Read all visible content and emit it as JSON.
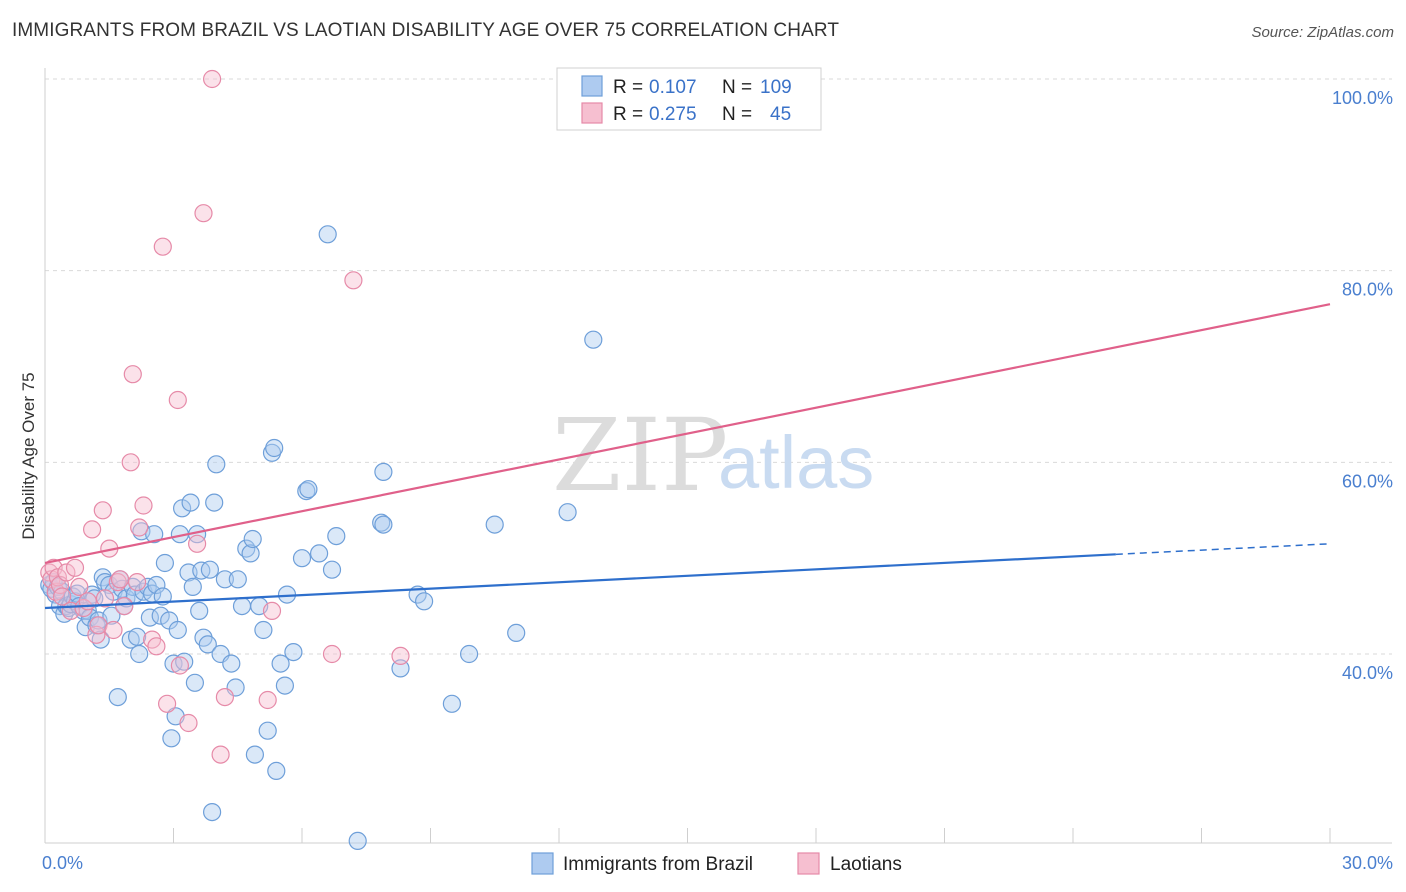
{
  "header": {
    "title": "IMMIGRANTS FROM BRAZIL VS LAOTIAN DISABILITY AGE OVER 75 CORRELATION CHART",
    "source": "Source: ZipAtlas.com"
  },
  "watermark": {
    "part1": "ZIP",
    "part2": "atlas"
  },
  "colors": {
    "blue_fill": "#aecbf0",
    "blue_stroke": "#6e9fd9",
    "blue_line": "#2e6fcc",
    "pink_fill": "#f6bfd0",
    "pink_stroke": "#e68aa8",
    "pink_line": "#e0608a",
    "tick_text": "#4a7fcf",
    "grid": "#d9d9d9"
  },
  "stats_legend": {
    "rows": [
      {
        "r_label": "R =",
        "r_value": "0.107",
        "n_label": "N =",
        "n_value": "109"
      },
      {
        "r_label": "R =",
        "r_value": "0.275",
        "n_label": "N =",
        "n_value": "45"
      }
    ]
  },
  "chart_data": {
    "type": "scatter",
    "title": "IMMIGRANTS FROM BRAZIL VS LAOTIAN DISABILITY AGE OVER 75 CORRELATION CHART",
    "xlabel": "",
    "ylabel": "Disability Age Over 75",
    "xlim": [
      0,
      30
    ],
    "ylim": [
      20,
      102
    ],
    "x_tick_labels": [
      "0.0%",
      "30.0%"
    ],
    "y_ticks": [
      40,
      60,
      80,
      100
    ],
    "y_tick_labels": [
      "40.0%",
      "60.0%",
      "80.0%",
      "100.0%"
    ],
    "grid": "horizontal dashed",
    "legend_position": "top-center",
    "series": [
      {
        "name": "Immigrants from Brazil",
        "color": "#6e9fd9",
        "trend": {
          "x": [
            0,
            25
          ],
          "y": [
            44.8,
            50.4
          ],
          "dashed_extension_to_x": 30,
          "dashed_y_end": 51.5
        },
        "points": [
          [
            0.1,
            47.2
          ],
          [
            0.15,
            46.8
          ],
          [
            0.2,
            47.5
          ],
          [
            0.25,
            46.2
          ],
          [
            0.3,
            47.0
          ],
          [
            0.35,
            45.0
          ],
          [
            0.4,
            46.5
          ],
          [
            0.45,
            44.2
          ],
          [
            0.5,
            45.0
          ],
          [
            0.55,
            44.8
          ],
          [
            0.6,
            45.2
          ],
          [
            0.65,
            46.0
          ],
          [
            0.7,
            45.5
          ],
          [
            0.75,
            46.3
          ],
          [
            0.8,
            45.0
          ],
          [
            0.9,
            44.5
          ],
          [
            0.95,
            42.8
          ],
          [
            1.0,
            44.5
          ],
          [
            1.05,
            43.8
          ],
          [
            1.1,
            46.2
          ],
          [
            1.15,
            45.8
          ],
          [
            1.2,
            43.0
          ],
          [
            1.25,
            43.5
          ],
          [
            1.3,
            41.5
          ],
          [
            1.35,
            48.0
          ],
          [
            1.4,
            47.5
          ],
          [
            1.5,
            47.2
          ],
          [
            1.55,
            44.0
          ],
          [
            1.6,
            46.5
          ],
          [
            1.7,
            35.5
          ],
          [
            1.75,
            47.8
          ],
          [
            1.8,
            46.8
          ],
          [
            1.85,
            45.0
          ],
          [
            1.9,
            45.8
          ],
          [
            2.0,
            41.5
          ],
          [
            2.05,
            47.0
          ],
          [
            2.1,
            46.2
          ],
          [
            2.15,
            41.8
          ],
          [
            2.2,
            40.0
          ],
          [
            2.25,
            52.8
          ],
          [
            2.3,
            46.5
          ],
          [
            2.4,
            47.0
          ],
          [
            2.45,
            43.8
          ],
          [
            2.5,
            46.3
          ],
          [
            2.55,
            52.5
          ],
          [
            2.6,
            47.2
          ],
          [
            2.7,
            44.0
          ],
          [
            2.75,
            46.0
          ],
          [
            2.8,
            49.5
          ],
          [
            2.9,
            43.5
          ],
          [
            2.95,
            31.2
          ],
          [
            3.0,
            39.0
          ],
          [
            3.05,
            33.5
          ],
          [
            3.1,
            42.5
          ],
          [
            3.15,
            52.5
          ],
          [
            3.2,
            55.2
          ],
          [
            3.25,
            39.2
          ],
          [
            3.35,
            48.5
          ],
          [
            3.4,
            55.8
          ],
          [
            3.45,
            47.0
          ],
          [
            3.5,
            37.0
          ],
          [
            3.55,
            52.5
          ],
          [
            3.6,
            44.5
          ],
          [
            3.65,
            48.7
          ],
          [
            3.7,
            41.7
          ],
          [
            3.8,
            41.0
          ],
          [
            3.85,
            48.8
          ],
          [
            3.9,
            23.5
          ],
          [
            3.95,
            55.8
          ],
          [
            4.0,
            59.8
          ],
          [
            4.1,
            40.0
          ],
          [
            4.2,
            47.8
          ],
          [
            4.35,
            39.0
          ],
          [
            4.45,
            36.5
          ],
          [
            4.5,
            47.8
          ],
          [
            4.6,
            45.0
          ],
          [
            4.7,
            51.0
          ],
          [
            4.8,
            50.5
          ],
          [
            4.85,
            52.0
          ],
          [
            4.9,
            29.5
          ],
          [
            5.0,
            45.0
          ],
          [
            5.1,
            42.5
          ],
          [
            5.2,
            32.0
          ],
          [
            5.3,
            61.0
          ],
          [
            5.35,
            61.5
          ],
          [
            5.4,
            27.8
          ],
          [
            5.5,
            39.0
          ],
          [
            5.6,
            36.7
          ],
          [
            5.65,
            46.2
          ],
          [
            5.8,
            40.2
          ],
          [
            6.0,
            50.0
          ],
          [
            6.1,
            57.0
          ],
          [
            6.15,
            57.2
          ],
          [
            6.4,
            50.5
          ],
          [
            6.6,
            83.8
          ],
          [
            6.7,
            48.8
          ],
          [
            6.8,
            52.3
          ],
          [
            7.3,
            20.5
          ],
          [
            7.85,
            53.7
          ],
          [
            7.9,
            53.5
          ],
          [
            7.9,
            59.0
          ],
          [
            8.3,
            38.5
          ],
          [
            8.7,
            46.2
          ],
          [
            8.85,
            45.5
          ],
          [
            9.5,
            34.8
          ],
          [
            9.9,
            40.0
          ],
          [
            10.5,
            53.5
          ],
          [
            11.0,
            42.2
          ],
          [
            12.2,
            54.8
          ],
          [
            12.8,
            72.8
          ]
        ]
      },
      {
        "name": "Laotians",
        "color": "#e68aa8",
        "trend": {
          "x": [
            0,
            30
          ],
          "y": [
            49.5,
            76.5
          ]
        },
        "points": [
          [
            0.1,
            48.5
          ],
          [
            0.15,
            47.8
          ],
          [
            0.2,
            49.0
          ],
          [
            0.25,
            46.5
          ],
          [
            0.3,
            48.0
          ],
          [
            0.35,
            47.2
          ],
          [
            0.4,
            46.0
          ],
          [
            0.5,
            48.5
          ],
          [
            0.6,
            44.5
          ],
          [
            0.7,
            49.0
          ],
          [
            0.8,
            47.0
          ],
          [
            0.9,
            44.8
          ],
          [
            1.0,
            45.5
          ],
          [
            1.1,
            53.0
          ],
          [
            1.2,
            42.0
          ],
          [
            1.25,
            43.0
          ],
          [
            1.35,
            55.0
          ],
          [
            1.4,
            45.8
          ],
          [
            1.5,
            51.0
          ],
          [
            1.6,
            42.5
          ],
          [
            1.7,
            47.5
          ],
          [
            1.75,
            47.8
          ],
          [
            1.85,
            45.0
          ],
          [
            2.0,
            60.0
          ],
          [
            2.05,
            69.2
          ],
          [
            2.15,
            47.5
          ],
          [
            2.2,
            53.2
          ],
          [
            2.3,
            55.5
          ],
          [
            2.5,
            41.5
          ],
          [
            2.6,
            40.8
          ],
          [
            2.75,
            82.5
          ],
          [
            2.85,
            34.8
          ],
          [
            3.1,
            66.5
          ],
          [
            3.15,
            38.8
          ],
          [
            3.35,
            32.8
          ],
          [
            3.55,
            51.5
          ],
          [
            3.7,
            86.0
          ],
          [
            3.9,
            100.0
          ],
          [
            4.1,
            29.5
          ],
          [
            4.2,
            35.5
          ],
          [
            5.2,
            35.2
          ],
          [
            5.3,
            44.5
          ],
          [
            6.7,
            40.0
          ],
          [
            7.2,
            79.0
          ],
          [
            8.3,
            39.8
          ]
        ]
      }
    ]
  },
  "bottom_legend": {
    "items": [
      {
        "label": "Immigrants from Brazil"
      },
      {
        "label": "Laotians"
      }
    ]
  }
}
